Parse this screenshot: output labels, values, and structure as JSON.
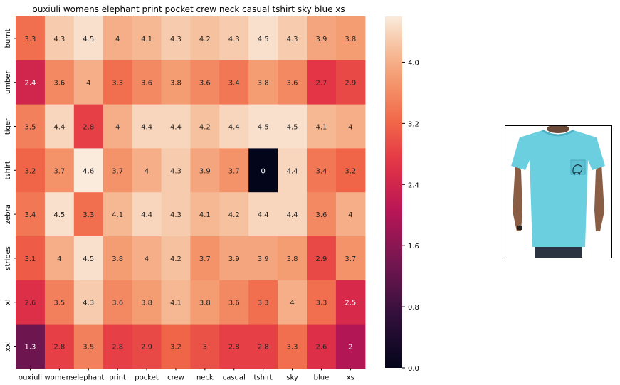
{
  "chart_data": {
    "type": "heatmap",
    "title": "ouxiuli womens elephant print pocket crew neck casual tshirt sky blue xs",
    "x_labels": [
      "ouxiuli",
      "womens",
      "elephant",
      "print",
      "pocket",
      "crew",
      "neck",
      "casual",
      "tshirt",
      "sky",
      "blue",
      "xs"
    ],
    "y_labels": [
      "burnt",
      "umber",
      "tiger",
      "tshirt",
      "zebra",
      "stripes",
      "xl",
      "xxl"
    ],
    "values": [
      [
        3.3,
        4.3,
        4.5,
        4,
        4.1,
        4.3,
        4.2,
        4.3,
        4.5,
        4.3,
        3.9,
        3.8
      ],
      [
        2.4,
        3.6,
        4,
        3.3,
        3.6,
        3.8,
        3.6,
        3.4,
        3.8,
        3.6,
        2.7,
        2.9
      ],
      [
        3.5,
        4.4,
        2.8,
        4,
        4.4,
        4.4,
        4.2,
        4.4,
        4.5,
        4.5,
        4.1,
        4
      ],
      [
        3.2,
        3.7,
        4.6,
        3.7,
        4,
        4.3,
        3.9,
        3.7,
        0,
        4.4,
        3.4,
        3.2
      ],
      [
        3.4,
        4.5,
        3.3,
        4.1,
        4.4,
        4.3,
        4.1,
        4.2,
        4.4,
        4.4,
        3.6,
        4
      ],
      [
        3.1,
        4,
        4.5,
        3.8,
        4,
        4.2,
        3.7,
        3.9,
        3.9,
        3.8,
        2.9,
        3.7
      ],
      [
        2.6,
        3.5,
        4.3,
        3.6,
        3.8,
        4.1,
        3.8,
        3.6,
        3.3,
        4,
        3.3,
        2.5
      ],
      [
        1.3,
        2.8,
        3.5,
        2.8,
        2.9,
        3.2,
        3,
        2.8,
        2.8,
        3.3,
        2.6,
        2
      ]
    ],
    "colorbar": {
      "min": 0,
      "max": 4.6,
      "ticks": [
        "0.0",
        "0.8",
        "1.6",
        "2.4",
        "3.2",
        "4.0"
      ]
    },
    "colormap": "rocket"
  },
  "product_image": {
    "subject": "sky blue crew neck t-shirt with elephant pocket",
    "shirt_color": "#6ccfe0"
  }
}
